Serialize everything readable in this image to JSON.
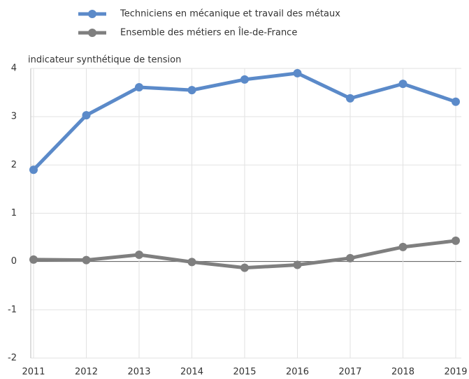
{
  "chart_data": {
    "type": "line",
    "y_label": "indicateur synthétique de tension",
    "x": [
      2011,
      2012,
      2013,
      2014,
      2015,
      2016,
      2017,
      2018,
      2019
    ],
    "series": [
      {
        "name": "Techniciens en mécanique et travail des métaux",
        "color": "#5b8ac9",
        "values": [
          1.9,
          3.03,
          3.61,
          3.55,
          3.77,
          3.9,
          3.38,
          3.68,
          3.31
        ]
      },
      {
        "name": "Ensemble des métiers en Île-de-France",
        "color": "#7f7f7f",
        "values": [
          0.04,
          0.03,
          0.14,
          -0.01,
          -0.13,
          -0.07,
          0.07,
          0.3,
          0.43
        ]
      }
    ],
    "xlim": [
      2011,
      2019
    ],
    "xticks": [
      2011,
      2012,
      2013,
      2014,
      2015,
      2016,
      2017,
      2018,
      2019
    ],
    "ylim": [
      -2,
      4
    ],
    "yticks": [
      -2,
      -1,
      0,
      1,
      2,
      3,
      4
    ],
    "grid": true
  }
}
